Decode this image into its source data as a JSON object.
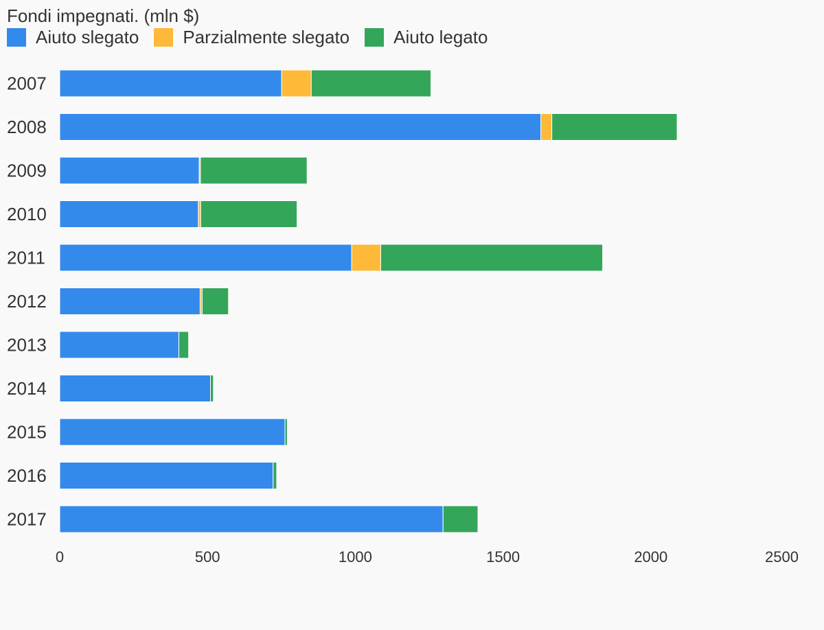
{
  "chart_data": {
    "type": "bar",
    "orientation": "horizontal",
    "stacked": true,
    "title": "Fondi impegnati. (mln $)",
    "xlim": [
      0,
      2500
    ],
    "xticks": [
      0,
      500,
      1000,
      1500,
      2000,
      2500
    ],
    "grid": false,
    "legend_position": "top-left",
    "categories": [
      "2007",
      "2008",
      "2009",
      "2010",
      "2011",
      "2012",
      "2013",
      "2014",
      "2015",
      "2016",
      "2017"
    ],
    "series": [
      {
        "name": "Aiuto slegato",
        "color": "#338aeb",
        "values": [
          751,
          1628,
          472,
          469,
          988,
          475,
          403,
          510,
          762,
          722,
          1297
        ]
      },
      {
        "name": "Parzialmente slegato",
        "color": "#ffb938",
        "values": [
          100,
          37,
          4,
          8,
          98,
          7,
          0,
          0,
          0,
          0,
          0
        ]
      },
      {
        "name": "Aiuto legato",
        "color": "#34a65a",
        "values": [
          405,
          424,
          361,
          326,
          751,
          89,
          33,
          10,
          8,
          12,
          118
        ]
      }
    ]
  }
}
